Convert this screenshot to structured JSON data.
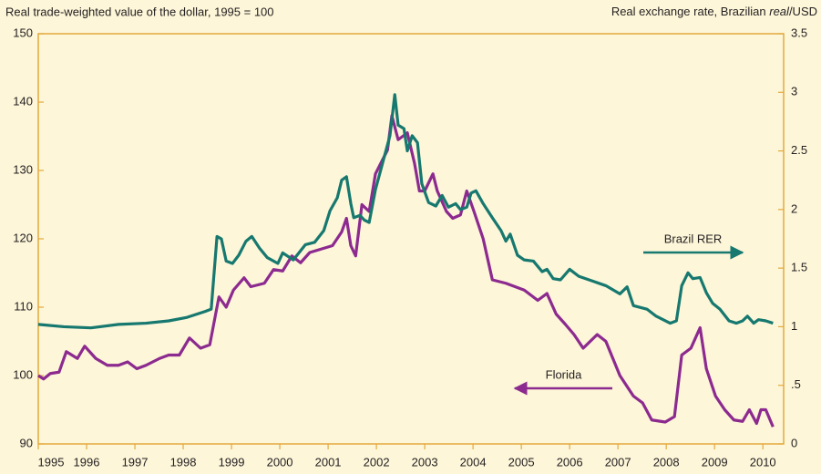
{
  "chart_data": {
    "type": "line",
    "y_label": "Real trade-weighted value of the dollar, 1995 = 100",
    "y2_label": [
      "Real exchange rate, Brazilian ",
      "real",
      "/USD"
    ],
    "xlim": [
      1995,
      2010.43
    ],
    "xticks": [
      1995,
      1996,
      1997,
      1998,
      1999,
      2000,
      2001,
      2002,
      2003,
      2004,
      2005,
      2006,
      2007,
      2008,
      2009,
      2010
    ],
    "ylim": [
      90,
      150
    ],
    "yticks": [
      90,
      100,
      110,
      120,
      130,
      140,
      150
    ],
    "y2lim": [
      0,
      3.5
    ],
    "y2ticks": [
      0,
      {
        "value": 0.5,
        "label": ".5"
      },
      1,
      1.5,
      2,
      2.5,
      3,
      3.5
    ],
    "series": [
      {
        "name": "Florida",
        "color": "#8c2a8f",
        "axis": "y",
        "x": [
          1995.0,
          1995.11,
          1995.25,
          1995.43,
          1995.58,
          1995.81,
          1995.96,
          1996.19,
          1996.43,
          1996.66,
          1996.85,
          1997.04,
          1997.23,
          1997.51,
          1997.7,
          1997.92,
          1998.13,
          1998.36,
          1998.55,
          1998.74,
          1998.89,
          1999.04,
          1999.26,
          1999.4,
          1999.68,
          1999.87,
          2000.06,
          2000.25,
          2000.43,
          2000.62,
          2001.09,
          2001.28,
          2001.38,
          2001.47,
          2001.57,
          2001.7,
          2001.85,
          2001.98,
          2002.23,
          2002.32,
          2002.45,
          2002.64,
          2002.79,
          2002.89,
          2003.0,
          2003.17,
          2003.26,
          2003.45,
          2003.58,
          2003.74,
          2003.87,
          2004.02,
          2004.21,
          2004.4,
          2004.68,
          2004.87,
          2005.06,
          2005.34,
          2005.53,
          2005.72,
          2005.91,
          2006.09,
          2006.28,
          2006.57,
          2006.75,
          2007.04,
          2007.32,
          2007.51,
          2007.7,
          2007.98,
          2008.17,
          2008.32,
          2008.51,
          2008.7,
          2008.83,
          2009.02,
          2009.21,
          2009.4,
          2009.58,
          2009.72,
          2009.87,
          2009.96,
          2010.06,
          2010.21
        ],
        "values": [
          100,
          99.5,
          100.3,
          100.5,
          103.5,
          102.5,
          104.3,
          102.5,
          101.5,
          101.5,
          102,
          101,
          101.5,
          102.5,
          103,
          103,
          105.5,
          104,
          104.5,
          111.5,
          110,
          112.5,
          114.3,
          113,
          113.5,
          115.5,
          115.3,
          117.5,
          116.5,
          118,
          119,
          121,
          123,
          119,
          117.5,
          125,
          124,
          129.5,
          133,
          138,
          134.5,
          135.5,
          131,
          127,
          127,
          129.5,
          127,
          124,
          123,
          123.5,
          127,
          124,
          120,
          114,
          113.5,
          113,
          112.5,
          111,
          112,
          109,
          107.5,
          106,
          104,
          106,
          105,
          100,
          97,
          96,
          93.5,
          93.2,
          94,
          103,
          104,
          107,
          101,
          97,
          95,
          93.5,
          93.3,
          95,
          93,
          95,
          95,
          92.5
        ]
      },
      {
        "name": "Brazil RER",
        "color": "#16786f",
        "axis": "y2",
        "x": [
          1995.0,
          1995.53,
          1996.09,
          1996.66,
          1997.23,
          1997.7,
          1998.08,
          1998.45,
          1998.58,
          1998.7,
          1998.79,
          1998.89,
          1999.02,
          1999.15,
          1999.3,
          1999.42,
          1999.58,
          1999.74,
          1999.96,
          2000.06,
          2000.28,
          2000.53,
          2000.72,
          2000.91,
          2001.04,
          2001.19,
          2001.28,
          2001.38,
          2001.47,
          2001.53,
          2001.66,
          2001.75,
          2001.85,
          2001.98,
          2002.13,
          2002.28,
          2002.38,
          2002.45,
          2002.57,
          2002.64,
          2002.74,
          2002.85,
          2002.94,
          2003.08,
          2003.23,
          2003.36,
          2003.49,
          2003.64,
          2003.74,
          2003.87,
          2003.96,
          2004.06,
          2004.21,
          2004.4,
          2004.58,
          2004.68,
          2004.77,
          2004.92,
          2005.06,
          2005.25,
          2005.43,
          2005.53,
          2005.66,
          2005.81,
          2006.0,
          2006.19,
          2006.47,
          2006.75,
          2007.04,
          2007.19,
          2007.32,
          2007.6,
          2007.79,
          2008.08,
          2008.21,
          2008.32,
          2008.45,
          2008.55,
          2008.7,
          2008.83,
          2008.96,
          2009.11,
          2009.3,
          2009.45,
          2009.58,
          2009.68,
          2009.81,
          2009.91,
          2010.06,
          2010.21
        ],
        "values": [
          1.02,
          1.0,
          0.99,
          1.02,
          1.03,
          1.05,
          1.08,
          1.13,
          1.15,
          1.77,
          1.75,
          1.56,
          1.54,
          1.61,
          1.73,
          1.77,
          1.67,
          1.59,
          1.54,
          1.63,
          1.57,
          1.7,
          1.72,
          1.82,
          1.99,
          2.1,
          2.25,
          2.28,
          2.05,
          1.93,
          1.95,
          1.91,
          1.89,
          2.17,
          2.4,
          2.63,
          2.98,
          2.72,
          2.69,
          2.5,
          2.63,
          2.57,
          2.22,
          2.06,
          2.03,
          2.12,
          2.02,
          2.05,
          2.0,
          2.02,
          2.14,
          2.16,
          2.05,
          1.93,
          1.82,
          1.73,
          1.79,
          1.61,
          1.57,
          1.56,
          1.47,
          1.49,
          1.41,
          1.4,
          1.49,
          1.43,
          1.39,
          1.35,
          1.28,
          1.34,
          1.18,
          1.15,
          1.09,
          1.03,
          1.05,
          1.35,
          1.46,
          1.41,
          1.42,
          1.29,
          1.2,
          1.15,
          1.05,
          1.03,
          1.05,
          1.09,
          1.03,
          1.06,
          1.05,
          1.03
        ]
      }
    ]
  }
}
